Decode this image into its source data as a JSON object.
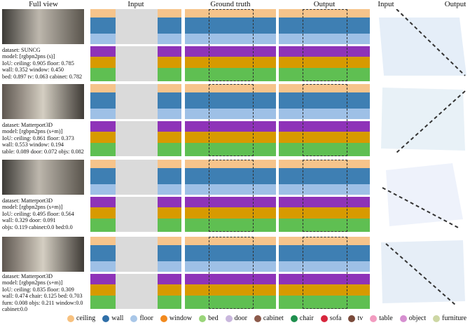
{
  "headers": {
    "full_view": "Full view",
    "input": "Input",
    "ground_truth": "Ground truth",
    "output": "Output",
    "input_right": "Input",
    "output_right": "Output"
  },
  "rows": [
    {
      "dataset": "dataset: SUNCG",
      "model": "model: [rgbpn2pns (s)]",
      "line3": "IoU: ceiling: 0.905 floor: 0.785",
      "line4": "wall: 0.352 window: 0.450",
      "line5": "bed: 0.897 tv: 0.063 cabinet: 0.782",
      "line6": ""
    },
    {
      "dataset": "dataset: Matterport3D",
      "model": "model: [rgbpn2pns (s+m)]",
      "line3": "IoU: ceiling: 0.861 floor: 0.373",
      "line4": "wall: 0.553 window: 0.194",
      "line5": "table: 0.089 door: 0.072 objs: 0.082",
      "line6": ""
    },
    {
      "dataset": "dataset: Matterport3D",
      "model": "model: [rgbpn2pns (s+m)]",
      "line3": "IoU: ceiling: 0.495 floor: 0.564",
      "line4": "wall: 0.329 door: 0.091",
      "line5": "objs: 0.119 cabinet:0.0 bed:0.0",
      "line6": ""
    },
    {
      "dataset": "dataset: Matterport3D",
      "model": "model: [rgbpn2pns (s+m)]",
      "line3": "IoU: ceiling: 0.835 floor: 0.309",
      "line4": "wall: 0.474 chair: 0.125 bed: 0.703",
      "line5": "furn: 0.008 objs: 0.211 window:0.0",
      "line6": "cabinet:0.0"
    }
  ],
  "legend": [
    {
      "label": "ceiling",
      "color": "#f7c17f"
    },
    {
      "label": "wall",
      "color": "#2f6fa8"
    },
    {
      "label": "floor",
      "color": "#a9c7e8"
    },
    {
      "label": "window",
      "color": "#f28a1e"
    },
    {
      "label": "bed",
      "color": "#9ad57a"
    },
    {
      "label": "door",
      "color": "#c9b7dd"
    },
    {
      "label": "cabinet",
      "color": "#8c5a4b"
    },
    {
      "label": "chair",
      "color": "#1f8f4e"
    },
    {
      "label": "sofa",
      "color": "#d7263d"
    },
    {
      "label": "tv",
      "color": "#7a4a3a"
    },
    {
      "label": "table",
      "color": "#f29cc0"
    },
    {
      "label": "object",
      "color": "#d68fd0"
    },
    {
      "label": "furniture",
      "color": "#cdd7a4"
    }
  ]
}
